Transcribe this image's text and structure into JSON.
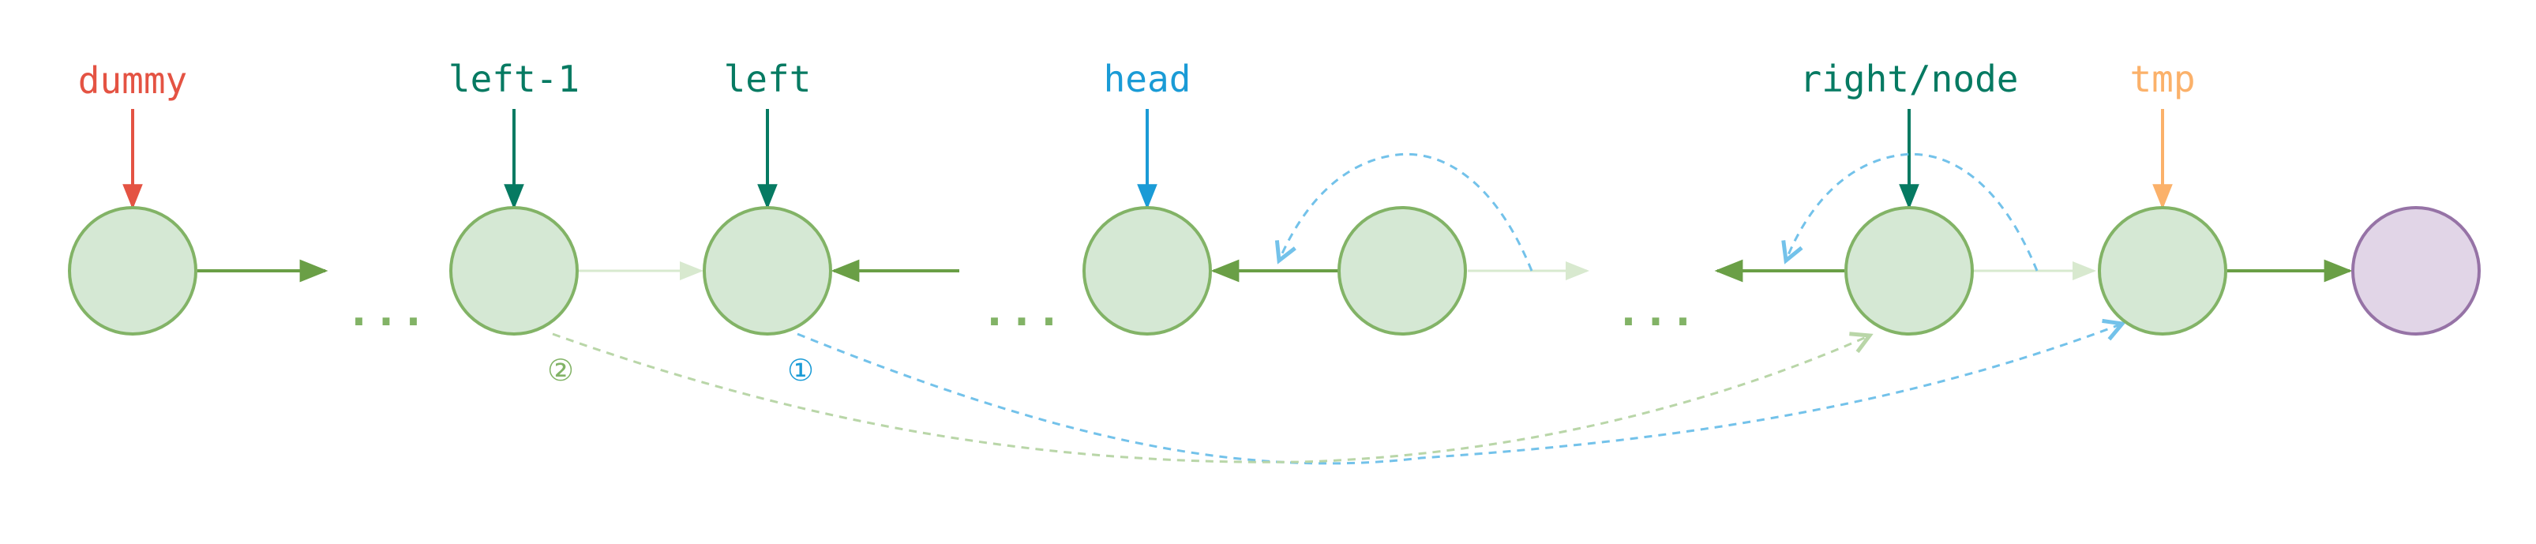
{
  "labels": {
    "dummy": "dummy",
    "left_minus_1": "left-1",
    "left": "left",
    "head": "head",
    "right_node": "right/node",
    "tmp": "tmp"
  },
  "ellipsis": "...",
  "step_markers": {
    "step1": "①",
    "step2": "②"
  },
  "colors": {
    "dummy": "#e45343",
    "teal_pointer": "#067a62",
    "head_pointer": "#1a9bd6",
    "tmp_pointer": "#fbb16a",
    "node_fill": "#d5e8d4",
    "node_stroke": "#82b366",
    "end_node_fill": "#e1d5e7",
    "end_node_stroke": "#9673a6",
    "link": "#6a9f46",
    "faded_link": "#cfe3c5",
    "reroute_blue": "#73c2ea",
    "reroute_green": "#b9d6a8"
  }
}
